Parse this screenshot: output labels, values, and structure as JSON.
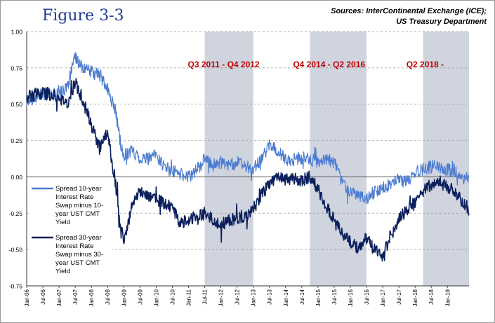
{
  "figure_title": "Figure 3-3",
  "sources_line1": "Sources: InterContinental  Exchange (ICE);",
  "sources_line2": "US Treasury Department",
  "colors": {
    "series_10y": "#4a7bd0",
    "series_30y": "#0b1f5c",
    "shade": "#cfd4de",
    "period_label": "#c00000",
    "zero_line": "#555555"
  },
  "chart_data": {
    "type": "line",
    "title": "Figure 3-3",
    "xlabel": "",
    "ylabel": "",
    "ylim": [
      -0.75,
      1.0
    ],
    "yticks": [
      "1.00",
      "0.75",
      "0.50",
      "0.25",
      "0.00",
      "-0.25",
      "-0.50",
      "-0.75"
    ],
    "xlim": [
      "2006-01",
      "2019-09"
    ],
    "xticks": [
      "Jan-06",
      "Jul-06",
      "Jan-07",
      "Jul-07",
      "Jan-08",
      "Jul-08",
      "Jan-09",
      "Jul-09",
      "Jan-10",
      "Jul-10",
      "Jan-11",
      "Jul-11",
      "Jan-12",
      "Jul-12",
      "Jan-13",
      "Jul-13",
      "Jan-14",
      "Jul-14",
      "Jan-15",
      "Jul-15",
      "Jan-16",
      "Jul-16",
      "Jan-17",
      "Jul-17",
      "Jan-18",
      "Jul-18",
      "Jan-19"
    ],
    "grid": "horizontal dashed",
    "legend_position": "left",
    "shaded_periods": [
      {
        "label": "Q3 2011 - Q4 2012",
        "start": "2011-07",
        "end": "2013-01"
      },
      {
        "label": "Q4 2014 - Q2 2016",
        "start": "2014-10",
        "end": "2016-07"
      },
      {
        "label": "Q2 2018 -",
        "start": "2018-04",
        "end": "2019-09"
      }
    ],
    "x": [
      "2006-01",
      "2006-07",
      "2007-01",
      "2007-04",
      "2007-07",
      "2007-10",
      "2008-01",
      "2008-04",
      "2008-07",
      "2008-10",
      "2008-12",
      "2009-01",
      "2009-04",
      "2009-07",
      "2009-10",
      "2010-01",
      "2010-04",
      "2010-07",
      "2010-10",
      "2011-01",
      "2011-04",
      "2011-07",
      "2011-10",
      "2012-01",
      "2012-04",
      "2012-07",
      "2012-10",
      "2013-01",
      "2013-04",
      "2013-07",
      "2013-10",
      "2014-01",
      "2014-04",
      "2014-07",
      "2014-10",
      "2015-01",
      "2015-04",
      "2015-07",
      "2015-10",
      "2016-01",
      "2016-04",
      "2016-07",
      "2016-10",
      "2017-01",
      "2017-04",
      "2017-07",
      "2017-10",
      "2018-01",
      "2018-04",
      "2018-07",
      "2018-10",
      "2019-01",
      "2019-04",
      "2019-07",
      "2019-09"
    ],
    "series": [
      {
        "name": "Spread 10-year Interest Rate Swap minus 10-year UST CMT Yield",
        "values": [
          0.52,
          0.57,
          0.57,
          0.62,
          0.82,
          0.75,
          0.72,
          0.7,
          0.6,
          0.45,
          0.2,
          0.15,
          0.18,
          0.13,
          0.12,
          0.15,
          0.07,
          0.04,
          0.02,
          0.0,
          0.05,
          0.12,
          0.08,
          0.1,
          0.08,
          0.1,
          0.07,
          0.05,
          0.12,
          0.22,
          0.18,
          0.12,
          0.12,
          0.13,
          0.12,
          0.1,
          0.12,
          0.1,
          -0.03,
          -0.1,
          -0.12,
          -0.15,
          -0.1,
          -0.08,
          -0.05,
          -0.02,
          -0.03,
          0.03,
          0.05,
          0.07,
          0.07,
          0.05,
          0.03,
          -0.02,
          0.0
        ]
      },
      {
        "name": "Spread 30-year Interest Rate Swap minus 30-year UST CMT Yield",
        "values": [
          0.55,
          0.58,
          0.55,
          0.5,
          0.65,
          0.52,
          0.35,
          0.2,
          0.3,
          -0.05,
          -0.35,
          -0.45,
          -0.2,
          -0.1,
          -0.12,
          -0.15,
          -0.18,
          -0.22,
          -0.32,
          -0.3,
          -0.27,
          -0.25,
          -0.3,
          -0.33,
          -0.3,
          -0.28,
          -0.27,
          -0.22,
          -0.12,
          -0.05,
          0.0,
          -0.02,
          -0.02,
          -0.02,
          0.0,
          -0.08,
          -0.2,
          -0.3,
          -0.4,
          -0.45,
          -0.5,
          -0.42,
          -0.5,
          -0.55,
          -0.4,
          -0.3,
          -0.22,
          -0.18,
          -0.1,
          -0.05,
          -0.03,
          -0.08,
          -0.12,
          -0.18,
          -0.25
        ]
      }
    ],
    "legend": [
      [
        "Spread 10-year",
        "Interest Rate",
        "Swap minus 10-",
        "year UST CMT",
        "Yield"
      ],
      [
        "Spread 30-year",
        "Interest Rate",
        "Swap minus 30-",
        "year UST CMT",
        "Yield"
      ]
    ]
  }
}
